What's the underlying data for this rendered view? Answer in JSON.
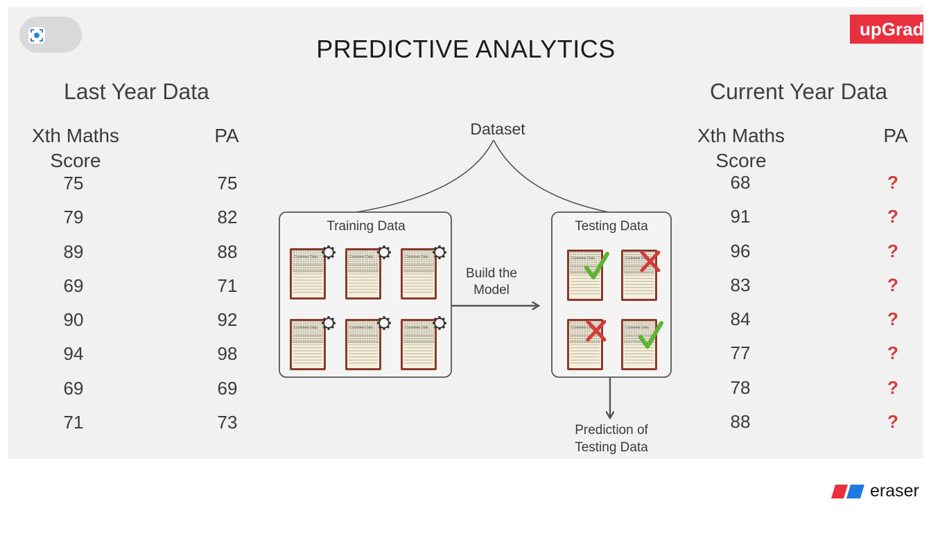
{
  "brand": {
    "label": "upGrad"
  },
  "title": "PREDICTIVE ANALYTICS",
  "left_table": {
    "heading": "Last Year Data",
    "col1_header_line1": "Xth Maths",
    "col1_header_line2": "Score",
    "col2_header": "PA",
    "scores": [
      "75",
      "79",
      "89",
      "69",
      "90",
      "94",
      "69",
      "71"
    ],
    "pa": [
      "75",
      "82",
      "88",
      "71",
      "92",
      "98",
      "69",
      "73"
    ]
  },
  "right_table": {
    "heading": "Current Year Data",
    "col1_header_line1": "Xth Maths",
    "col1_header_line2": "Score",
    "col2_header": "PA",
    "scores": [
      "68",
      "91",
      "96",
      "83",
      "84",
      "77",
      "78",
      "88"
    ],
    "pa": [
      "?",
      "?",
      "?",
      "?",
      "?",
      "?",
      "?",
      "?"
    ]
  },
  "diagram": {
    "dataset_label": "Dataset",
    "training_label": "Training Data",
    "testing_label": "Testing Data",
    "arrow_label_line1": "Build the",
    "arrow_label_line2": "Model",
    "prediction_line1": "Prediction of",
    "prediction_line2": "Testing Data",
    "notebook_label": "Customer Data",
    "testing_results": [
      "correct",
      "wrong",
      "wrong",
      "correct"
    ]
  },
  "colors": {
    "brand": "#e8303f",
    "question": "#d13b3b",
    "check": "#5cb531",
    "cross": "#d63a3a",
    "notebook": "#8b3a2b"
  },
  "watermark": {
    "label": "eraser"
  },
  "icons": [
    "screen-capture-icon",
    "gear-icon",
    "check-icon",
    "cross-icon",
    "eraser-logo-icon"
  ]
}
